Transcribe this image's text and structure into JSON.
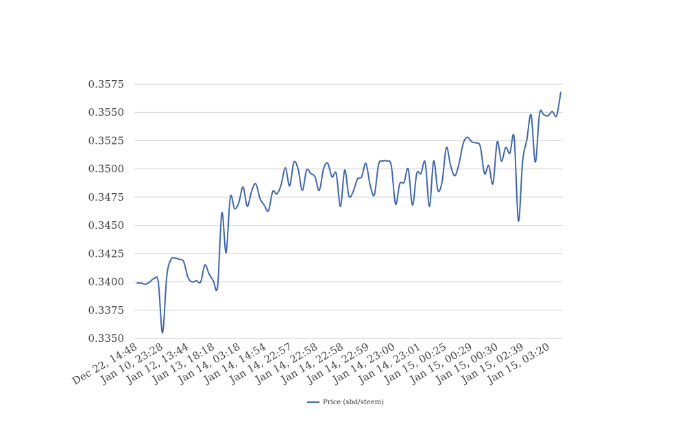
{
  "chart_data": {
    "type": "line",
    "series_color": "#3a66b8",
    "grid_color": "#cccccc",
    "grid": true,
    "legend_position": "bottom",
    "ylim": [
      0.335,
      0.3575
    ],
    "yticks": [
      "0.3350",
      "0.3375",
      "0.3400",
      "0.3425",
      "0.3450",
      "0.3475",
      "0.3500",
      "0.3525",
      "0.3550",
      "0.3575"
    ],
    "x_tick_labels": [
      "Dec 22, 14:48",
      "Jan 10, 23:28",
      "Jan 12, 13:44",
      "Jan 13, 18:18",
      "Jan 14, 03:18",
      "Jan 14, 14:54",
      "Jan 14, 22:57",
      "Jan 14, 22:58",
      "Jan 14, 22:58",
      "Jan 14, 22:59",
      "Jan 14, 23:00",
      "Jan 14, 23:01",
      "Jan 15, 00:25",
      "Jan 15, 00:29",
      "Jan 15, 00:30",
      "Jan 15, 02:39",
      "Jan 15, 03:20"
    ],
    "series": [
      {
        "name": "Price (sbd/steem)",
        "values": [
          0.3399,
          0.3399,
          0.3398,
          0.34,
          0.3403,
          0.34,
          0.3355,
          0.3405,
          0.342,
          0.3421,
          0.342,
          0.3418,
          0.3404,
          0.34,
          0.3401,
          0.34,
          0.3415,
          0.3407,
          0.3401,
          0.3396,
          0.3461,
          0.3426,
          0.3475,
          0.3465,
          0.347,
          0.3484,
          0.3467,
          0.348,
          0.3487,
          0.3474,
          0.3468,
          0.3463,
          0.348,
          0.3478,
          0.3486,
          0.3501,
          0.3485,
          0.3506,
          0.35,
          0.3481,
          0.3499,
          0.3496,
          0.3493,
          0.3481,
          0.35,
          0.3505,
          0.3493,
          0.3496,
          0.3467,
          0.3499,
          0.3476,
          0.348,
          0.3491,
          0.3493,
          0.3505,
          0.3486,
          0.3477,
          0.3504,
          0.3507,
          0.3507,
          0.3503,
          0.3469,
          0.3487,
          0.3488,
          0.35,
          0.3468,
          0.3496,
          0.3496,
          0.3506,
          0.3467,
          0.3507,
          0.3481,
          0.3489,
          0.3519,
          0.3503,
          0.3494,
          0.3505,
          0.3523,
          0.3528,
          0.3524,
          0.3523,
          0.352,
          0.3496,
          0.3503,
          0.3487,
          0.3524,
          0.3507,
          0.3519,
          0.3514,
          0.3528,
          0.3454,
          0.3507,
          0.3526,
          0.3548,
          0.3506,
          0.3549,
          0.3548,
          0.3547,
          0.3551,
          0.3547,
          0.3568
        ]
      }
    ]
  }
}
